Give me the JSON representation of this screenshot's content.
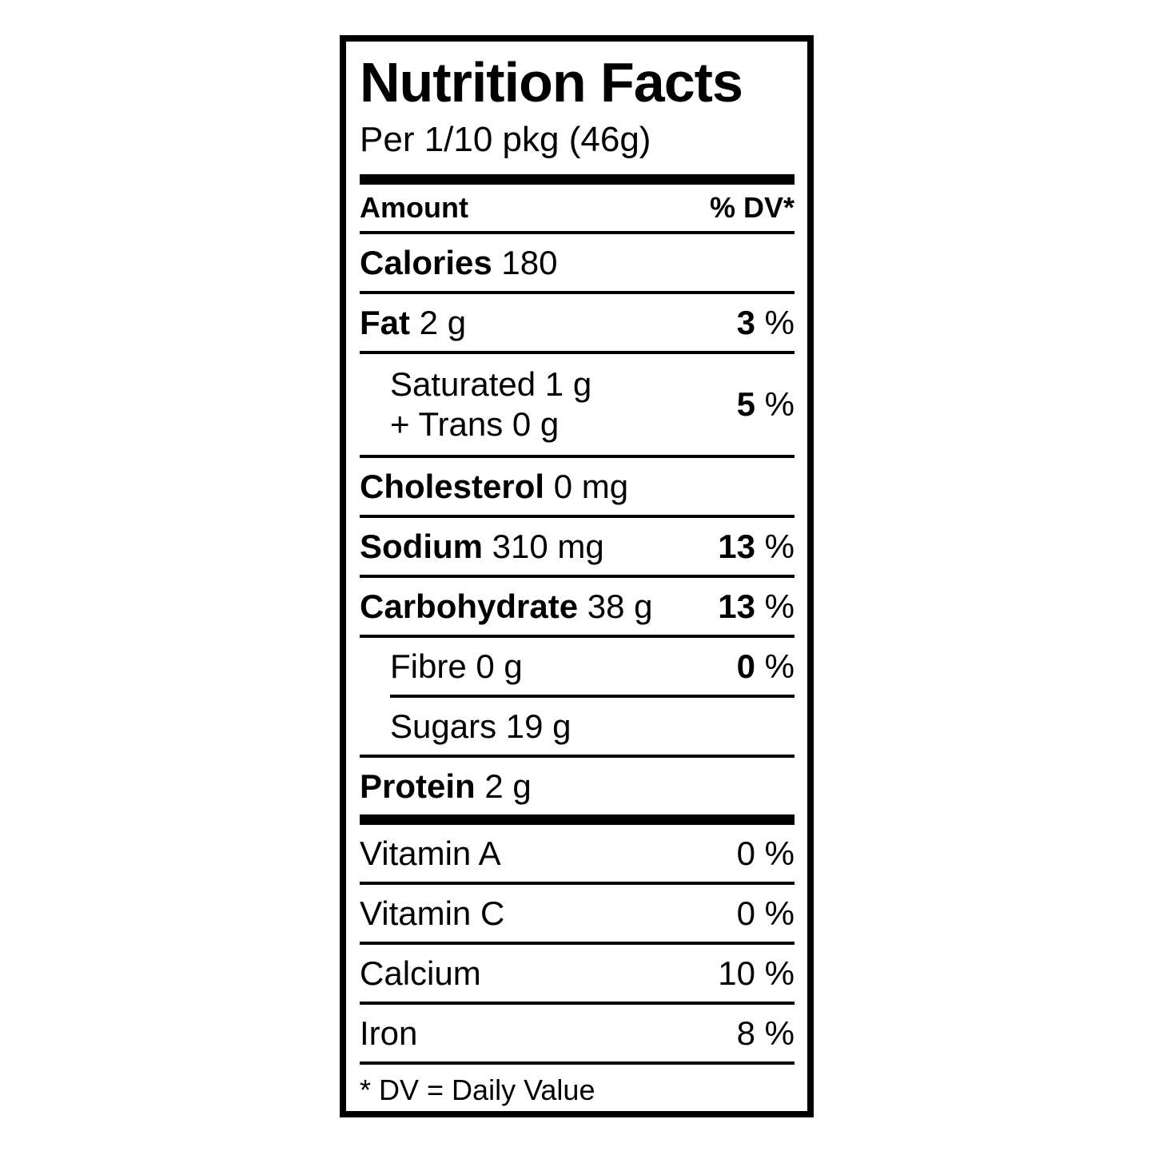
{
  "colors": {
    "text": "#000000",
    "background": "#ffffff"
  },
  "percent_sign": "%",
  "header": {
    "title": "Nutrition Facts",
    "serving": "Per 1/10 pkg (46g)"
  },
  "columns": {
    "amount": "Amount",
    "dv": "% DV*"
  },
  "rows": {
    "calories": {
      "name": "Calories",
      "amount": "180"
    },
    "fat": {
      "name": "Fat",
      "amount": "2 g",
      "dv": "3"
    },
    "saturated": {
      "line1": "Saturated 1 g",
      "line2": "+ Trans 0 g",
      "dv": "5"
    },
    "cholesterol": {
      "name": "Cholesterol",
      "amount": "0 mg"
    },
    "sodium": {
      "name": "Sodium",
      "amount": "310 mg",
      "dv": "13"
    },
    "carbohydrate": {
      "name": "Carbohydrate",
      "amount": "38 g",
      "dv": "13"
    },
    "fibre": {
      "name": "Fibre",
      "amount": "0 g",
      "dv": "0"
    },
    "sugars": {
      "name": "Sugars",
      "amount": "19 g"
    },
    "protein": {
      "name": "Protein",
      "amount": "2 g"
    },
    "vitamin_a": {
      "name": "Vitamin A",
      "dv": "0"
    },
    "vitamin_c": {
      "name": "Vitamin C",
      "dv": "0"
    },
    "calcium": {
      "name": "Calcium",
      "dv": "10"
    },
    "iron": {
      "name": "Iron",
      "dv": "8"
    }
  },
  "footnote": "* DV = Daily Value"
}
